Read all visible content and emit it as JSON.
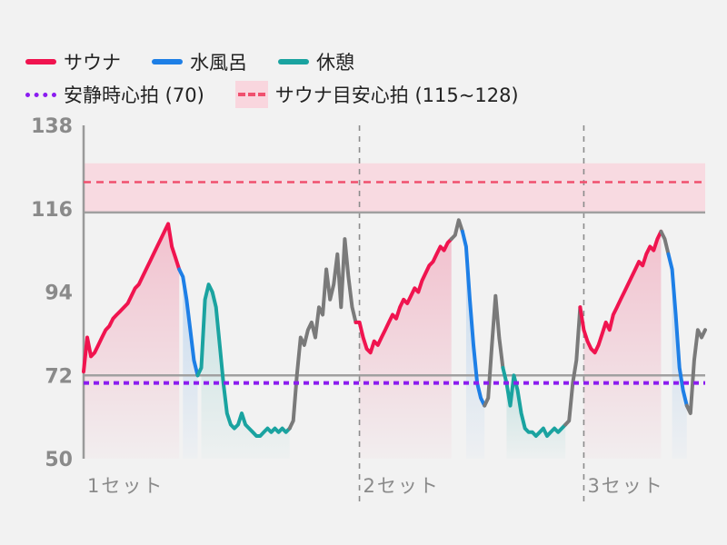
{
  "legend": {
    "sauna": "サウナ",
    "cold_bath": "水風呂",
    "rest": "休憩",
    "resting_hr": "安静時心拍 (70)",
    "sauna_target": "サウナ目安心拍 (115~128)"
  },
  "colors": {
    "sauna": "#f0144f",
    "cold_bath": "#1e7fe6",
    "rest": "#1aa3a0",
    "other": "#7a7a7a",
    "resting_hr": "#8b1cf0",
    "target_line": "#f0506e",
    "target_band": "#f9d6de"
  },
  "chart_data": {
    "type": "line",
    "title": "",
    "xlabel": "",
    "ylabel": "",
    "ylim": [
      50,
      138
    ],
    "yticks": [
      50,
      72,
      94,
      116,
      138
    ],
    "set_labels": [
      "1セット",
      "2セット",
      "3セット"
    ],
    "resting_hr": 70,
    "target_range": [
      115,
      128
    ],
    "target_line": 123,
    "grid_line": 72,
    "segments": [
      {
        "phase": "sauna",
        "values": [
          73,
          82,
          77,
          78,
          80,
          82,
          84,
          85,
          87,
          88,
          89,
          90,
          91,
          93,
          95,
          96,
          98,
          100,
          102,
          104,
          106,
          108,
          110,
          112,
          106,
          103,
          100
        ]
      },
      {
        "phase": "cold_bath",
        "values": [
          98,
          92,
          84,
          76,
          72
        ]
      },
      {
        "phase": "rest",
        "values": [
          74,
          92,
          96,
          94,
          90,
          80,
          70,
          62,
          59,
          58,
          59,
          62,
          59,
          58,
          57,
          56,
          56,
          57,
          58,
          57,
          58,
          57,
          58,
          57,
          58
        ]
      },
      {
        "phase": "other",
        "values": [
          60,
          72,
          82,
          80,
          84,
          86,
          82,
          90,
          88,
          100,
          92,
          96,
          104,
          90,
          108,
          98,
          90,
          86
        ]
      },
      {
        "phase": "sauna",
        "values": [
          86,
          82,
          79,
          78,
          81,
          80,
          82,
          84,
          86,
          88,
          87,
          90,
          92,
          91,
          93,
          95,
          94,
          97,
          99,
          101,
          102,
          104,
          106,
          105,
          107,
          108
        ]
      },
      {
        "phase": "other",
        "values": [
          109,
          113,
          110
        ]
      },
      {
        "phase": "cold_bath",
        "values": [
          106,
          92,
          80,
          70,
          66,
          64
        ]
      },
      {
        "phase": "other",
        "values": [
          66,
          80,
          93,
          82,
          74
        ]
      },
      {
        "phase": "rest",
        "values": [
          70,
          64,
          72,
          68,
          62,
          58,
          57,
          57,
          56,
          57,
          58,
          56,
          57,
          58,
          57,
          58,
          59
        ]
      },
      {
        "phase": "other",
        "values": [
          60,
          70,
          76,
          90
        ]
      },
      {
        "phase": "sauna",
        "values": [
          84,
          81,
          79,
          78,
          80,
          83,
          86,
          84,
          88,
          90,
          92,
          94,
          96,
          98,
          100,
          102,
          101,
          104,
          106,
          105,
          108,
          110
        ]
      },
      {
        "phase": "other",
        "values": [
          108,
          104
        ]
      },
      {
        "phase": "cold_bath",
        "values": [
          100,
          88,
          74,
          68,
          64
        ]
      },
      {
        "phase": "other",
        "values": [
          62,
          76,
          84,
          82,
          84
        ]
      }
    ]
  }
}
